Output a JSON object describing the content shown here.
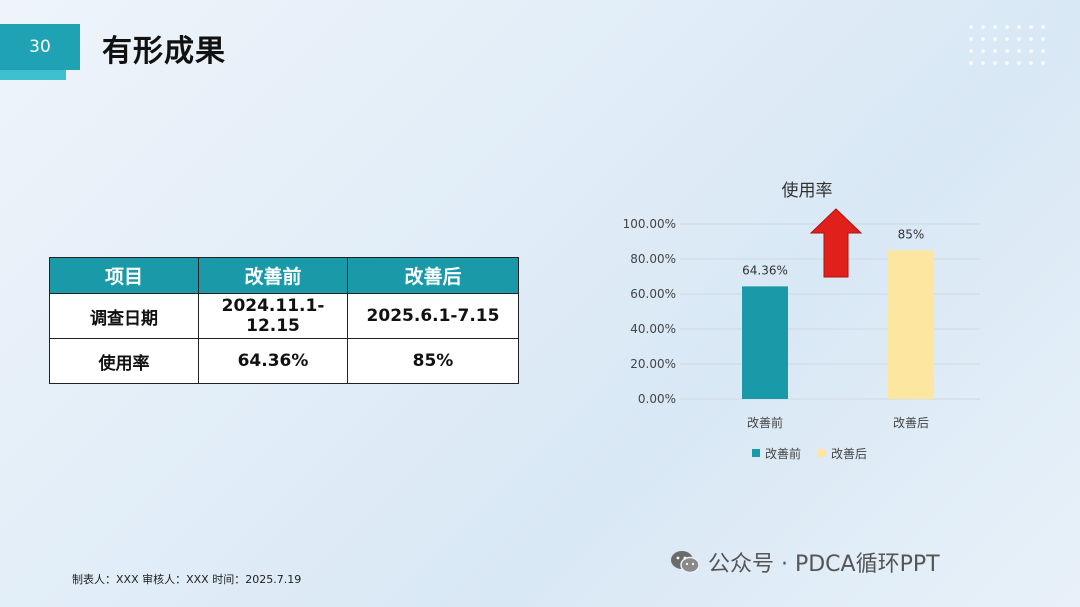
{
  "slide": {
    "number": "30",
    "title": "有形成果"
  },
  "table": {
    "headers": [
      "项目",
      "改善前",
      "改善后"
    ],
    "rows": [
      [
        "调查日期",
        "2024.11.1-12.15",
        "2025.6.1-7.15"
      ],
      [
        "使用率",
        "64.36%",
        "85%"
      ]
    ]
  },
  "chart_data": {
    "type": "bar",
    "title": "使用率",
    "categories": [
      "改善前",
      "改善后"
    ],
    "values": [
      64.36,
      85
    ],
    "data_labels": [
      "64.36%",
      "85%"
    ],
    "ylim": [
      0,
      100
    ],
    "yticks": [
      "0.00%",
      "20.00%",
      "40.00%",
      "60.00%",
      "80.00%",
      "100.00%"
    ],
    "colors": [
      "#1a9aa9",
      "#fde7a0"
    ],
    "legend": [
      "改善前",
      "改善后"
    ],
    "legend_position": "bottom",
    "grid": true,
    "annotation": "red-up-arrow"
  },
  "footer": {
    "note": "制表人：XXX  审核人：XXX  时间：2025.7.19"
  },
  "watermark": {
    "text": "公众号 · PDCA循环PPT",
    "icon": "wechat-icon"
  }
}
